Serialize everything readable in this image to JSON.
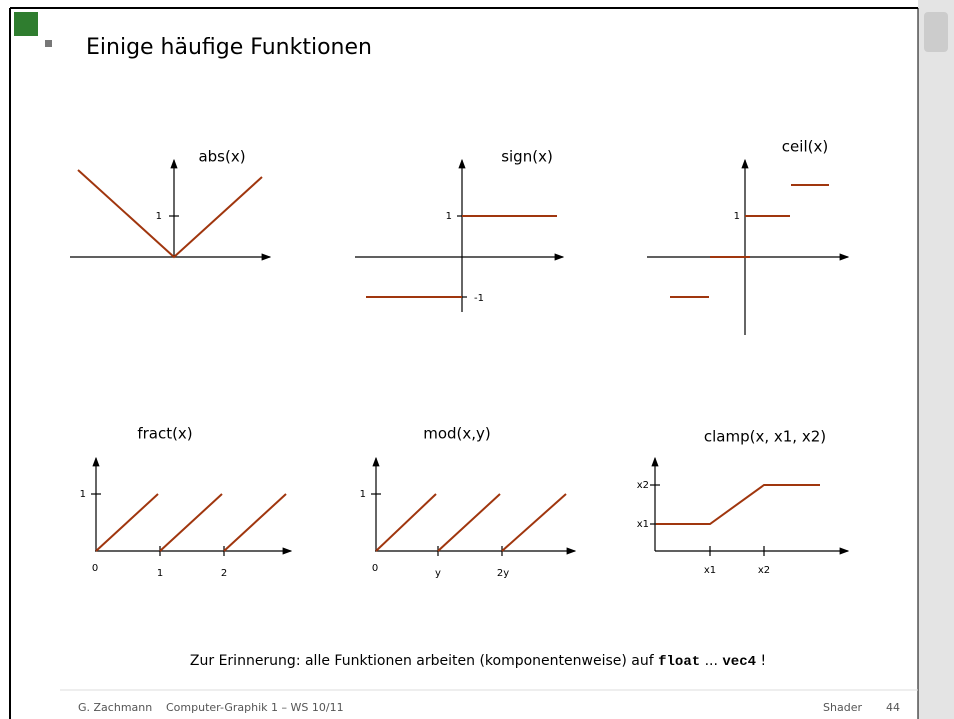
{
  "header": {
    "title": "Einige häufige Funktionen"
  },
  "plots": [
    {
      "label": "abs(x)",
      "ticks": [
        "1"
      ]
    },
    {
      "label": "sign(x)",
      "ticks": [
        "1",
        "-1"
      ]
    },
    {
      "label": "ceil(x)",
      "ticks": [
        "1"
      ]
    },
    {
      "label": "fract(x)",
      "ticks": [
        "1",
        "0",
        "1",
        "2"
      ]
    },
    {
      "label": "mod(x,y)",
      "ticks": [
        "1",
        "0",
        "y",
        "2y"
      ]
    },
    {
      "label": "clamp(x, x1, x2)",
      "ticks": [
        "x2",
        "x1",
        "x1",
        "x2"
      ]
    }
  ],
  "note": {
    "text": "Zur Erinnerung: alle Funktionen arbeiten (komponentenweise) auf",
    "code1": "float",
    "sep": "...",
    "code2": "vec4",
    "end": "!"
  },
  "footer": {
    "author": "G. Zachmann",
    "course": "Computer-Graphik 1 – WS 10/11",
    "section": "Shader",
    "page": "44"
  }
}
